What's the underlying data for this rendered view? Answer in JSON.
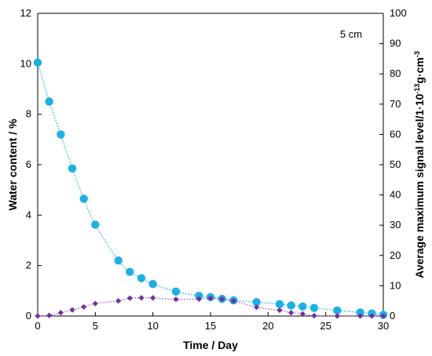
{
  "chart_data": {
    "type": "scatter",
    "xlabel": "Time / Day",
    "ylabel_left": "Water content / %",
    "ylabel_right_base": "Average maximum signal level/1·10",
    "ylabel_right_exp": "-13",
    "ylabel_right_unit": "g·cm",
    "ylabel_right_unit_exp": "-3",
    "annotation": "5 cm",
    "xlim": [
      0,
      30
    ],
    "xticks": [
      "0",
      "5",
      "10",
      "15",
      "20",
      "25",
      "30"
    ],
    "ylim_left": [
      0,
      12
    ],
    "yticks_left": [
      "0",
      "2",
      "4",
      "6",
      "8",
      "10",
      "12"
    ],
    "ylim_right": [
      0,
      100
    ],
    "yticks_right": [
      "0",
      "10",
      "20",
      "30",
      "40",
      "50",
      "60",
      "70",
      "80",
      "90",
      "100"
    ],
    "grid": false,
    "legend": "none",
    "series": [
      {
        "axis": "left",
        "marker": "circle",
        "color": "#1ab0e8",
        "trend_color": "#1ab0e8",
        "x": [
          0,
          1,
          2,
          3,
          4,
          5,
          7,
          8,
          9,
          10,
          12,
          14,
          15,
          16,
          17,
          19,
          21,
          22,
          23,
          24,
          26,
          28,
          29,
          30
        ],
        "y": [
          10.05,
          8.5,
          7.2,
          5.85,
          4.65,
          3.62,
          2.2,
          1.75,
          1.5,
          1.27,
          0.97,
          0.8,
          0.75,
          0.68,
          0.62,
          0.55,
          0.47,
          0.42,
          0.38,
          0.32,
          0.22,
          0.14,
          0.1,
          0.05
        ]
      },
      {
        "axis": "right",
        "marker": "diamond",
        "color": "#7030a0",
        "trend_color": "#9a5ec4",
        "x": [
          0,
          1,
          2,
          3,
          4,
          5,
          7,
          8,
          9,
          10,
          12,
          14,
          15,
          16,
          17,
          19,
          21,
          22,
          23,
          24,
          26,
          28,
          29,
          30
        ],
        "y": [
          0,
          0.2,
          1.1,
          2.0,
          3.0,
          4.1,
          5.0,
          5.9,
          6.0,
          6.0,
          5.5,
          5.6,
          5.9,
          5.6,
          5.0,
          2.9,
          1.9,
          1.1,
          0.7,
          0.1,
          0,
          0,
          0,
          0
        ]
      }
    ]
  }
}
